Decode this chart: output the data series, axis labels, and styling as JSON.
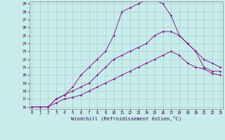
{
  "xlabel": "Windchill (Refroidissement éolien,°C)",
  "bg_color": "#c8ecec",
  "line_color": "#882288",
  "grid_color": "#aacccc",
  "xmin": 0,
  "xmax": 23,
  "ymin": 16,
  "ymax": 29,
  "yticks": [
    16,
    17,
    18,
    19,
    20,
    21,
    22,
    23,
    24,
    25,
    26,
    27,
    28,
    29
  ],
  "xticks": [
    0,
    1,
    2,
    3,
    4,
    5,
    6,
    7,
    8,
    9,
    10,
    11,
    12,
    13,
    14,
    15,
    16,
    17,
    18,
    19,
    20,
    21,
    22,
    23
  ],
  "curve_top_x": [
    0,
    1,
    2,
    3,
    4,
    5,
    6,
    7,
    8,
    9,
    10,
    11,
    12,
    13,
    14,
    15,
    16,
    17,
    18,
    19,
    20,
    21,
    22,
    23
  ],
  "curve_top_y": [
    16,
    16,
    16,
    17,
    17.5,
    18.5,
    20,
    21,
    22,
    23,
    25,
    28,
    28.5,
    29,
    29.5,
    29.5,
    29,
    27.5,
    25,
    24,
    23,
    22,
    21.5,
    21
  ],
  "curve_mid_x": [
    0,
    1,
    2,
    3,
    4,
    5,
    6,
    7,
    8,
    9,
    10,
    11,
    12,
    13,
    14,
    15,
    16,
    17,
    18,
    19,
    20,
    21,
    22,
    23
  ],
  "curve_mid_y": [
    16,
    16,
    16,
    17,
    17.5,
    18,
    18.5,
    19,
    20,
    21,
    22,
    22.5,
    23,
    23.5,
    24,
    25,
    25.5,
    25.5,
    25,
    24,
    23,
    21,
    20.5,
    20.5
  ],
  "curve_bot_x": [
    0,
    1,
    2,
    3,
    4,
    5,
    6,
    7,
    8,
    9,
    10,
    11,
    12,
    13,
    14,
    15,
    16,
    17,
    18,
    19,
    20,
    21,
    22,
    23
  ],
  "curve_bot_y": [
    16,
    16,
    16,
    16.5,
    17,
    17.2,
    17.5,
    18,
    18.5,
    19,
    19.5,
    20,
    20.5,
    21,
    21.5,
    22,
    22.5,
    23,
    22.5,
    21.5,
    21,
    20.8,
    20.2,
    20
  ]
}
